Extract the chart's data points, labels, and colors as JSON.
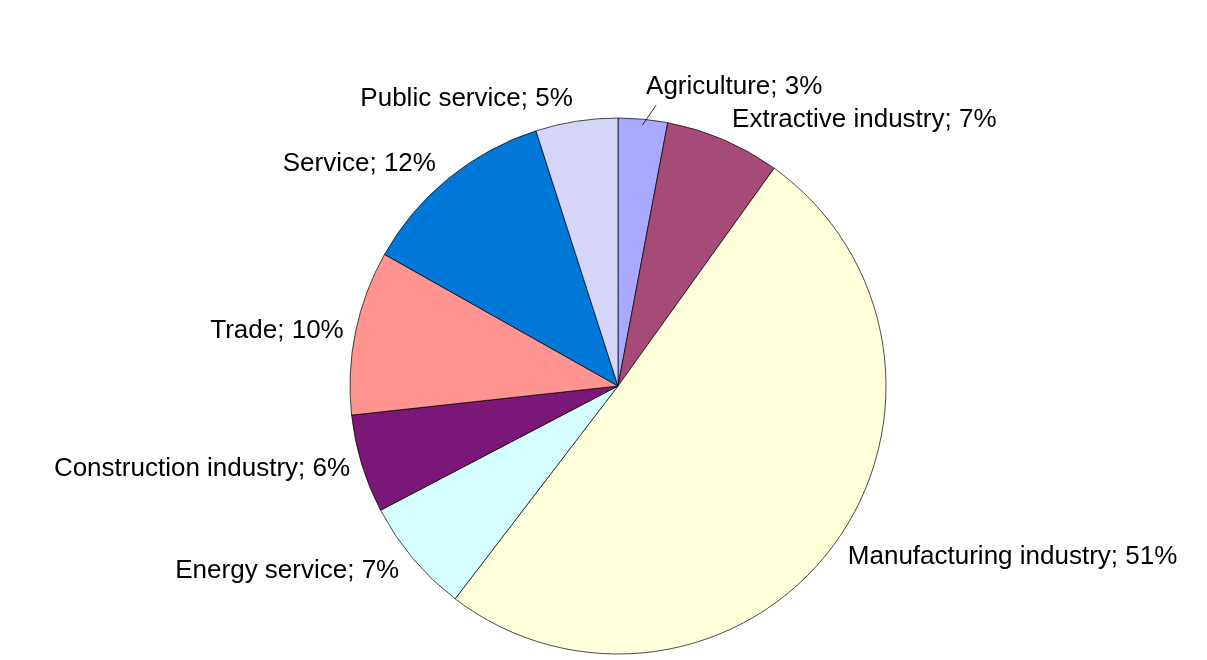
{
  "chart_data": {
    "type": "pie",
    "categories": [
      "Agriculture",
      "Extractive industry",
      "Manufacturing industry",
      "Energy service",
      "Construction industry",
      "Trade",
      "Service",
      "Public service"
    ],
    "values": [
      3,
      7,
      51,
      7,
      6,
      10,
      12,
      5
    ],
    "value_labels": [
      "3%",
      "7%",
      "51%",
      "7%",
      "6%",
      "10%",
      "12%",
      "5%"
    ],
    "colors": [
      "#a9a9ff",
      "#a64a78",
      "#ffffd9",
      "#d5ffff",
      "#7a1777",
      "#ff9490",
      "#0078d7",
      "#d5d5fa"
    ]
  }
}
